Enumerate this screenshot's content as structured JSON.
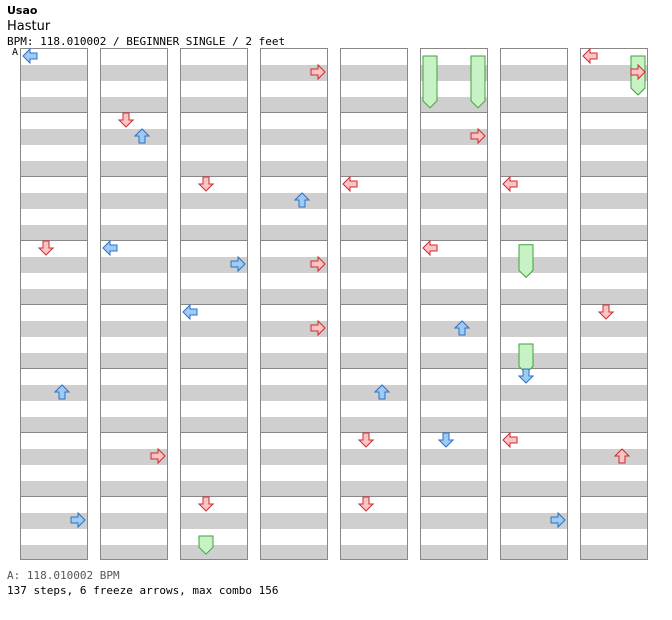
{
  "song": {
    "artist": "Usao",
    "title": "Hastur",
    "info_line": "BPM: 118.010002 / BEGINNER SINGLE / 2 feet",
    "marker": "A"
  },
  "footer": {
    "bpm_line": "A: 118.010002 BPM",
    "stats_line": "137 steps, 6 freeze arrows, max combo 156"
  },
  "colors": {
    "red_fill": "#f9c4c4",
    "red_stroke": "#d0282c",
    "blue_fill": "#9ecbf5",
    "blue_stroke": "#2c6fc0",
    "freeze_fill": "#c9f2c4",
    "freeze_stroke": "#3aa63a",
    "stripe": "#cfcfcf"
  },
  "chart": {
    "columns": 8,
    "measures_per_column": 8,
    "lanes": [
      "left",
      "down",
      "up",
      "right"
    ],
    "notes": [
      [
        0,
        0,
        "left",
        "blue"
      ],
      [
        0,
        3,
        "down",
        "red"
      ],
      [
        0,
        5,
        "up",
        "blue"
      ],
      [
        0,
        7,
        "right",
        "blue"
      ],
      [
        1,
        1,
        "down",
        "red"
      ],
      [
        1,
        1,
        "up",
        "blue"
      ],
      [
        1,
        6,
        "right",
        "red"
      ],
      [
        1,
        3,
        "left",
        "blue"
      ],
      [
        2,
        2,
        "down",
        "red"
      ],
      [
        2,
        7,
        "down",
        "red"
      ],
      [
        2,
        3,
        "right",
        "blue"
      ],
      [
        2,
        4,
        "left",
        "blue"
      ],
      [
        3,
        0,
        "right",
        "red"
      ],
      [
        3,
        2,
        "up",
        "blue"
      ],
      [
        3,
        3,
        "right",
        "red"
      ],
      [
        3,
        4,
        "right",
        "red"
      ],
      [
        4,
        2,
        "left",
        "red"
      ],
      [
        4,
        5,
        "up",
        "blue"
      ],
      [
        4,
        6,
        "down",
        "red"
      ],
      [
        4,
        7,
        "down",
        "red"
      ],
      [
        5,
        1,
        "right",
        "red"
      ],
      [
        5,
        3,
        "left",
        "red"
      ],
      [
        5,
        4,
        "up",
        "blue"
      ],
      [
        5,
        6,
        "down",
        "blue"
      ],
      [
        6,
        2,
        "left",
        "red"
      ],
      [
        6,
        5,
        "down",
        "blue"
      ],
      [
        6,
        6,
        "left",
        "red"
      ],
      [
        6,
        7,
        "right",
        "blue"
      ],
      [
        7,
        0,
        "left",
        "red"
      ],
      [
        7,
        0,
        "right",
        "red"
      ],
      [
        7,
        4,
        "down",
        "red"
      ],
      [
        7,
        6,
        "up",
        "red"
      ]
    ],
    "freezes": [
      [
        5,
        0,
        "left",
        0,
        1.4
      ],
      [
        5,
        0,
        "right",
        0,
        1.4
      ],
      [
        6,
        2,
        "down",
        1.9,
        2.7
      ],
      [
        6,
        4,
        "down",
        1.0,
        1.7
      ],
      [
        7,
        0,
        "right",
        0,
        1.0
      ],
      [
        2,
        7,
        "down",
        1.0,
        1.35
      ]
    ]
  }
}
